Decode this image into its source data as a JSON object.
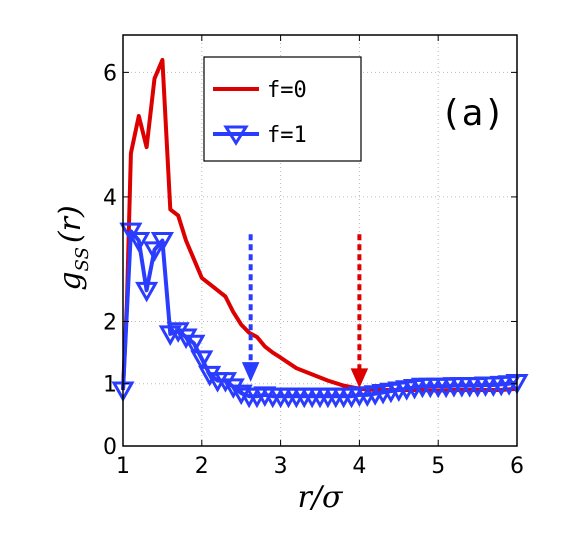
{
  "chart_data": {
    "type": "line",
    "panel_label": "(a)",
    "xlabel": "r/σ",
    "ylabel_main": "g",
    "ylabel_sub": "SS",
    "ylabel_arg": "(r)",
    "xlim": [
      1,
      6
    ],
    "ylim": [
      0,
      6.6
    ],
    "xticks": [
      1,
      2,
      3,
      4,
      5,
      6
    ],
    "yticks": [
      0,
      1,
      2,
      4,
      6
    ],
    "grid": true,
    "legend_position": "top-left-inside",
    "series": [
      {
        "name": "f=0",
        "color": "#dd0000",
        "marker": "none",
        "x": [
          1.0,
          1.05,
          1.1,
          1.2,
          1.3,
          1.4,
          1.5,
          1.6,
          1.7,
          1.8,
          1.9,
          2.0,
          2.1,
          2.2,
          2.3,
          2.4,
          2.5,
          2.6,
          2.7,
          2.8,
          2.9,
          3.0,
          3.2,
          3.4,
          3.6,
          3.8,
          4.0,
          4.2,
          4.4,
          4.6,
          4.8,
          5.0,
          5.2,
          5.4,
          5.6,
          5.8,
          6.0
        ],
        "y": [
          0.9,
          2.3,
          4.7,
          5.3,
          4.8,
          5.9,
          6.2,
          3.8,
          3.7,
          3.3,
          3.0,
          2.7,
          2.6,
          2.5,
          2.4,
          2.15,
          1.95,
          1.82,
          1.75,
          1.6,
          1.5,
          1.42,
          1.25,
          1.15,
          1.05,
          0.97,
          0.92,
          0.9,
          0.9,
          0.9,
          0.9,
          0.89,
          0.9,
          0.9,
          0.9,
          0.9,
          0.92
        ]
      },
      {
        "name": "f=1",
        "color": "#2a3dff",
        "marker": "triangle-down",
        "x": [
          1.0,
          1.1,
          1.2,
          1.3,
          1.4,
          1.5,
          1.6,
          1.7,
          1.8,
          1.9,
          2.0,
          2.1,
          2.2,
          2.3,
          2.4,
          2.5,
          2.6,
          2.7,
          2.8,
          2.9,
          3.0,
          3.1,
          3.2,
          3.3,
          3.4,
          3.5,
          3.6,
          3.7,
          3.8,
          3.9,
          4.0,
          4.1,
          4.2,
          4.3,
          4.4,
          4.5,
          4.6,
          4.7,
          4.8,
          4.9,
          5.0,
          5.1,
          5.2,
          5.3,
          5.4,
          5.5,
          5.6,
          5.7,
          5.8,
          5.9,
          6.0
        ],
        "y": [
          0.9,
          3.45,
          3.3,
          2.5,
          3.15,
          3.3,
          1.8,
          1.85,
          1.75,
          1.65,
          1.4,
          1.15,
          1.05,
          1.05,
          0.95,
          0.85,
          0.8,
          0.8,
          0.82,
          0.8,
          0.8,
          0.8,
          0.8,
          0.8,
          0.8,
          0.8,
          0.8,
          0.8,
          0.8,
          0.8,
          0.82,
          0.82,
          0.84,
          0.86,
          0.88,
          0.9,
          0.92,
          0.94,
          0.96,
          0.96,
          0.96,
          0.96,
          0.97,
          0.97,
          0.97,
          0.97,
          0.98,
          0.98,
          0.99,
          1.0,
          1.02
        ]
      }
    ],
    "annotations": [
      {
        "type": "dashed-arrow-down",
        "color": "#2a3dff",
        "x": 2.62,
        "y_from": 3.4,
        "y_to": 1.05
      },
      {
        "type": "dashed-arrow-down",
        "color": "#dd0000",
        "x": 4.0,
        "y_from": 3.4,
        "y_to": 0.95
      }
    ]
  }
}
